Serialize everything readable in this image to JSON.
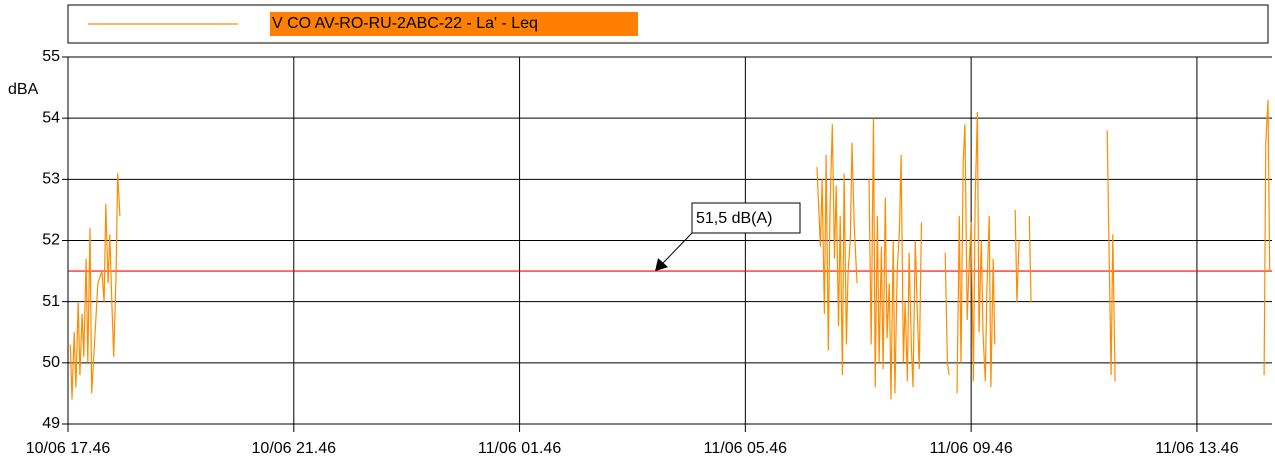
{
  "chart_data": {
    "type": "line",
    "y_label": "dBA",
    "xlim": [
      0,
      21.33
    ],
    "ylim": [
      49,
      55
    ],
    "yticks": [
      49,
      50,
      51,
      52,
      53,
      54,
      55
    ],
    "xticks": [
      {
        "value": 0,
        "label": "10/06 17.46"
      },
      {
        "value": 4,
        "label": "10/06 21.46"
      },
      {
        "value": 8,
        "label": "11/06 01.46"
      },
      {
        "value": 12,
        "label": "11/06 05.46"
      },
      {
        "value": 16,
        "label": "11/06 09.46"
      },
      {
        "value": 20,
        "label": "11/06 13.46"
      }
    ],
    "grid": true,
    "legend": "top",
    "reference_line": {
      "value": 51.5,
      "color": "#ff0000"
    },
    "annotation": {
      "text": "51,5 dB(A)",
      "x": 10.4,
      "value": 51.5
    },
    "x": [
      0.04,
      0.07,
      0.11,
      0.14,
      0.18,
      0.21,
      0.25,
      0.28,
      0.32,
      0.35,
      0.39,
      0.42,
      0.48,
      0.53,
      0.6,
      0.64,
      0.67,
      0.71,
      0.74,
      0.78,
      0.81,
      0.85,
      0.88,
      0.92,
      7.0,
      13.27,
      13.33,
      13.36,
      13.4,
      13.43,
      13.47,
      13.5,
      13.54,
      13.58,
      13.61,
      13.65,
      13.68,
      13.72,
      13.75,
      13.79,
      13.82,
      13.86,
      13.89,
      13.93,
      13.98,
      14.08,
      14.19,
      14.23,
      14.27,
      14.3,
      14.34,
      14.37,
      14.41,
      14.44,
      14.48,
      14.51,
      14.55,
      14.58,
      14.62,
      14.65,
      14.69,
      14.73,
      14.76,
      14.8,
      14.83,
      14.87,
      14.9,
      14.94,
      14.97,
      15.01,
      15.04,
      15.08,
      15.12,
      15.33,
      15.54,
      15.58,
      15.61,
      15.68,
      15.75,
      15.79,
      15.82,
      15.86,
      15.89,
      15.93,
      15.96,
      16.0,
      16.04,
      16.07,
      16.11,
      16.14,
      16.18,
      16.21,
      16.25,
      16.28,
      16.32,
      16.35,
      16.39,
      16.42,
      16.6,
      16.78,
      16.81,
      16.85,
      16.94,
      17.03,
      17.06,
      17.7,
      18.41,
      18.44,
      18.48,
      18.51,
      18.55,
      19.9,
      21.19,
      21.22,
      21.26,
      21.29
    ],
    "series": [
      {
        "name": "V CO AV-RO-RU-2ABC-22 - La' - Leq",
        "color": "#ff8c00",
        "values": [
          50.3,
          49.4,
          50.5,
          49.6,
          51.0,
          49.8,
          50.8,
          50.1,
          51.7,
          50.0,
          52.2,
          49.5,
          50.5,
          51.3,
          51.5,
          51.0,
          52.6,
          51.3,
          52.1,
          50.9,
          50.1,
          51.4,
          53.1,
          52.4,
          null,
          53.2,
          51.9,
          53.0,
          50.8,
          53.4,
          50.2,
          52.5,
          53.9,
          51.7,
          52.9,
          50.6,
          52.4,
          49.8,
          53.1,
          50.3,
          51.5,
          52.0,
          53.6,
          52.2,
          51.3,
          null,
          53.0,
          50.3,
          54.0,
          49.6,
          52.4,
          50.0,
          51.9,
          49.9,
          52.7,
          50.4,
          51.3,
          49.4,
          52.0,
          49.5,
          51.5,
          52.2,
          53.4,
          50.0,
          51.0,
          49.7,
          51.8,
          50.3,
          49.6,
          52.0,
          51.0,
          49.9,
          52.3,
          null,
          51.8,
          50.0,
          49.8,
          null,
          49.5,
          52.4,
          50.0,
          53.3,
          53.9,
          50.7,
          51.5,
          52.3,
          49.7,
          52.6,
          54.1,
          50.5,
          52.0,
          50.5,
          49.7,
          51.2,
          52.4,
          49.6,
          51.7,
          50.3,
          null,
          52.5,
          51.0,
          52.0,
          null,
          52.4,
          51.0,
          null,
          53.8,
          52.0,
          49.8,
          52.1,
          49.7,
          null,
          49.8,
          53.6,
          54.3,
          51.5
        ]
      }
    ]
  }
}
